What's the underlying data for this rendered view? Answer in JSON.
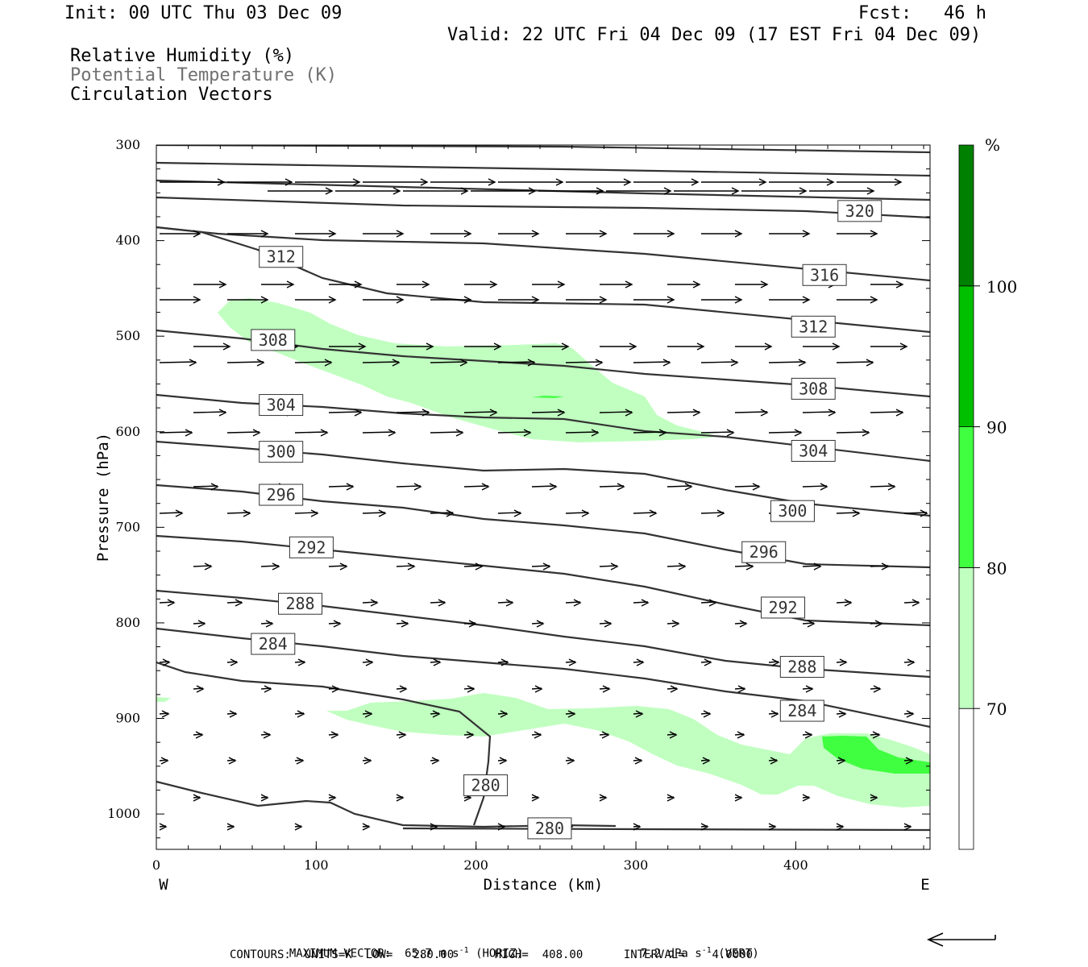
{
  "header": {
    "init": "Init: 00 UTC Thu 03 Dec 09",
    "fcst": "Fcst:   46 h",
    "valid": "Valid: 22 UTC Fri 04 Dec 09 (17 EST Fri 04 Dec 09)",
    "fields": [
      {
        "label": "Relative Humidity (%)",
        "color": "#000000"
      },
      {
        "label": "Potential Temperature (K)",
        "color": "#707070"
      },
      {
        "label": "Circulation Vectors",
        "color": "#000000"
      }
    ]
  },
  "footer": {
    "max_vector": "MAXIMUM VECTOR:  65.7 m s",
    "max_vector_horiz": "(HORIZ)",
    "max_vector_vert": "7.2 dPa s",
    "max_vector_vert_unit": "(VERT)",
    "exponent": "-1",
    "contours": "CONTOURS:  UNITS=K  LOW=   280.00      HIGH=  408.00      INTERVAL=    4.0000"
  },
  "chart_data": {
    "type": "cross-section",
    "xlabel": "Distance (km)",
    "ylabel": "Pressure (hPa)",
    "x_left_label": "W",
    "x_right_label": "E",
    "xlim": [
      0,
      484
    ],
    "ylim": [
      1037,
      300
    ],
    "x_ticks": [
      0,
      100,
      200,
      300,
      400
    ],
    "y_ticks": [
      300,
      400,
      500,
      600,
      700,
      800,
      900,
      1000
    ],
    "colorbar": {
      "unit": "%",
      "levels": [
        70,
        80,
        90,
        100
      ],
      "colors": [
        "#ffffff",
        "#c0ffc0",
        "#40ff40",
        "#00c000",
        "#008000"
      ]
    },
    "contour_labels": [
      {
        "value": "320",
        "x": 440,
        "p": 369
      },
      {
        "value": "316",
        "x": 418,
        "p": 436
      },
      {
        "value": "312",
        "x": 78,
        "p": 417
      },
      {
        "value": "312",
        "x": 411,
        "p": 490
      },
      {
        "value": "308",
        "x": 73,
        "p": 504
      },
      {
        "value": "308",
        "x": 411,
        "p": 555
      },
      {
        "value": "304",
        "x": 78,
        "p": 572
      },
      {
        "value": "304",
        "x": 411,
        "p": 620
      },
      {
        "value": "300",
        "x": 78,
        "p": 621
      },
      {
        "value": "300",
        "x": 398,
        "p": 683
      },
      {
        "value": "296",
        "x": 78,
        "p": 666
      },
      {
        "value": "296",
        "x": 380,
        "p": 726
      },
      {
        "value": "292",
        "x": 97,
        "p": 721
      },
      {
        "value": "292",
        "x": 392,
        "p": 784
      },
      {
        "value": "288",
        "x": 90,
        "p": 780
      },
      {
        "value": "288",
        "x": 404,
        "p": 846
      },
      {
        "value": "284",
        "x": 73,
        "p": 822
      },
      {
        "value": "284",
        "x": 404,
        "p": 892
      },
      {
        "value": "280",
        "x": 206,
        "p": 970
      },
      {
        "value": "280",
        "x": 246,
        "p": 1015
      }
    ]
  }
}
